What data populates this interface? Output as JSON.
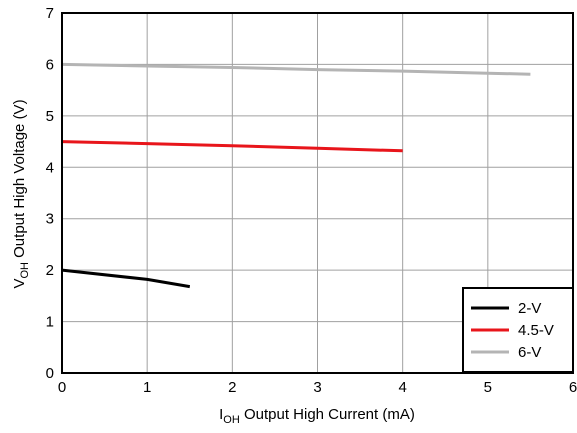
{
  "chart_data": {
    "type": "line",
    "title": "",
    "xlabel": {
      "main": "I",
      "sub": "OH",
      "rest": " Output High Current (mA)"
    },
    "ylabel": {
      "main": "V",
      "sub": "OH",
      "rest": " Output High Voltage (V)"
    },
    "xlim": [
      0,
      6
    ],
    "ylim": [
      0,
      7
    ],
    "xticks": [
      0,
      1,
      2,
      3,
      4,
      5,
      6
    ],
    "yticks": [
      0,
      1,
      2,
      3,
      4,
      5,
      6,
      7
    ],
    "grid": true,
    "legend_position": "bottom-right",
    "series": [
      {
        "name": "2-V",
        "color": "#000000",
        "points": [
          [
            0,
            2.0
          ],
          [
            1,
            1.82
          ],
          [
            1.5,
            1.68
          ]
        ]
      },
      {
        "name": "4.5-V",
        "color": "#e8151b",
        "points": [
          [
            0,
            4.5
          ],
          [
            1,
            4.46
          ],
          [
            2,
            4.42
          ],
          [
            3,
            4.37
          ],
          [
            4,
            4.32
          ]
        ]
      },
      {
        "name": "6-V",
        "color": "#b4b4b4",
        "points": [
          [
            0,
            6.0
          ],
          [
            1,
            5.97
          ],
          [
            2,
            5.94
          ],
          [
            3,
            5.9
          ],
          [
            4,
            5.87
          ],
          [
            5,
            5.83
          ],
          [
            5.5,
            5.81
          ]
        ]
      }
    ]
  }
}
